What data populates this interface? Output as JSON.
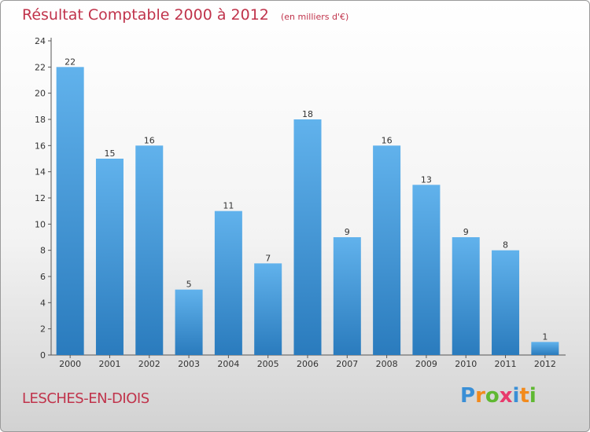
{
  "header": {
    "title": "Résultat Comptable 2000 à 2012",
    "subtitle": "(en milliers d'€)"
  },
  "commune": "LESCHES-EN-DIOIS",
  "logo": {
    "text": "Proxiti",
    "letters": [
      {
        "ch": "P",
        "color": "#3a8fd6"
      },
      {
        "ch": "r",
        "color": "#f28a1c"
      },
      {
        "ch": "o",
        "color": "#5fb832"
      },
      {
        "ch": "x",
        "color": "#e83a6c"
      },
      {
        "ch": "i",
        "color": "#3a8fd6"
      },
      {
        "ch": "t",
        "color": "#f28a1c"
      },
      {
        "ch": "i",
        "color": "#5fb832"
      }
    ]
  },
  "colors": {
    "bar_top": "#61b2ec",
    "bar_bottom": "#2a7bbd",
    "axis": "#555555",
    "title": "#c0334b"
  },
  "chart_data": {
    "type": "bar",
    "title": "Résultat Comptable 2000 à 2012",
    "subtitle": "(en milliers d'€)",
    "xlabel": "",
    "ylabel": "",
    "categories": [
      "2000",
      "2001",
      "2002",
      "2003",
      "2004",
      "2005",
      "2006",
      "2007",
      "2008",
      "2009",
      "2010",
      "2011",
      "2012"
    ],
    "values": [
      22,
      15,
      16,
      5,
      11,
      7,
      18,
      9,
      16,
      13,
      9,
      8,
      1
    ],
    "ylim": [
      0,
      24
    ],
    "yticks": [
      0,
      2,
      4,
      6,
      8,
      10,
      12,
      14,
      16,
      18,
      20,
      22,
      24
    ],
    "grid": false,
    "legend": "none"
  }
}
